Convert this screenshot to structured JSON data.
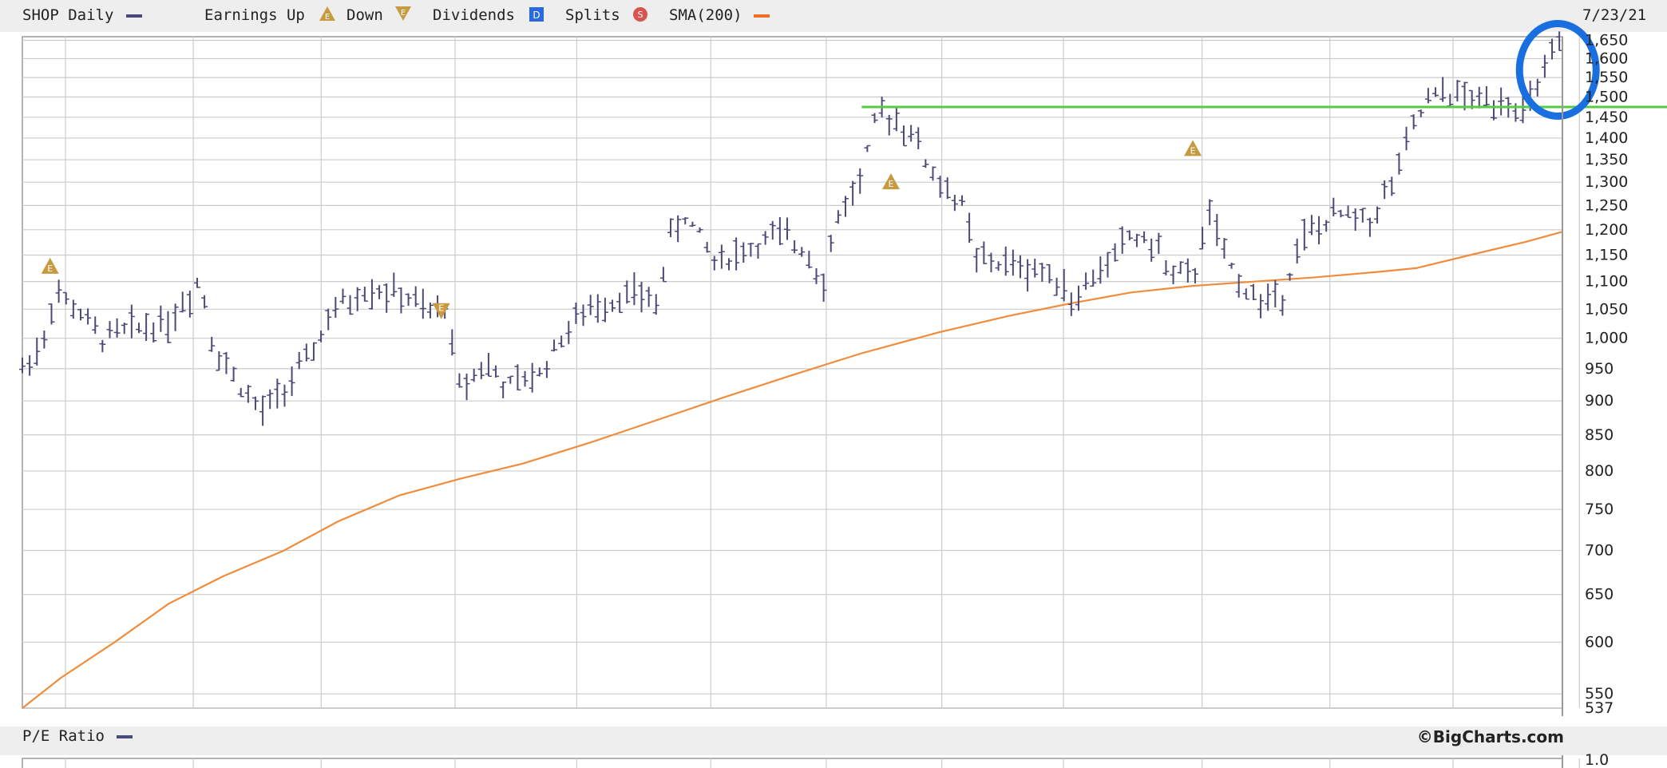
{
  "legend": {
    "symbol_label": "SHOP Daily",
    "earnings_label": "Earnings Up",
    "down_label": "Down",
    "dividends_label": "Dividends",
    "dividends_icon": "D",
    "splits_label": "Splits",
    "splits_icon": "S",
    "sma_label": "SMA(200)",
    "date": "7/23/21",
    "earnings_icon": "E"
  },
  "lower_panel": {
    "label": "P/E Ratio",
    "brand": "©BigCharts.com",
    "top_tick": "1.0"
  },
  "colors": {
    "price_bars": "#4a4a78",
    "sma": "#f08c3c",
    "resistance_line": "#55cc44",
    "highlight_circle": "#1a6fe0",
    "earnings_marker": "#c89a40",
    "grid": "#cccccc",
    "dividends": "#2a6ae0",
    "splits": "#d9534f"
  },
  "chart_data": {
    "type": "ohlc",
    "title": "SHOP Daily",
    "scale": "log",
    "ylim": [
      537,
      1660
    ],
    "y_ticks": [
      {
        "v": 1650,
        "label": "1,650"
      },
      {
        "v": 1600,
        "label": "1,600"
      },
      {
        "v": 1550,
        "label": "1,550"
      },
      {
        "v": 1500,
        "label": "1,500"
      },
      {
        "v": 1450,
        "label": "1,450"
      },
      {
        "v": 1400,
        "label": "1,400"
      },
      {
        "v": 1350,
        "label": "1,350"
      },
      {
        "v": 1300,
        "label": "1,300"
      },
      {
        "v": 1250,
        "label": "1,250"
      },
      {
        "v": 1200,
        "label": "1,200"
      },
      {
        "v": 1150,
        "label": "1,150"
      },
      {
        "v": 1100,
        "label": "1,100"
      },
      {
        "v": 1050,
        "label": "1,050"
      },
      {
        "v": 1000,
        "label": "1,000"
      },
      {
        "v": 950,
        "label": "950"
      },
      {
        "v": 900,
        "label": "900"
      },
      {
        "v": 850,
        "label": "850"
      },
      {
        "v": 800,
        "label": "800"
      },
      {
        "v": 750,
        "label": "750"
      },
      {
        "v": 700,
        "label": "700"
      },
      {
        "v": 650,
        "label": "650"
      },
      {
        "v": 600,
        "label": "600"
      },
      {
        "v": 550,
        "label": "550"
      },
      {
        "v": 537,
        "label": "537"
      }
    ],
    "x_range": [
      0,
      1000
    ],
    "x_gridlines": [
      28,
      111,
      194,
      281,
      360,
      447,
      522,
      597,
      676,
      766,
      849,
      929,
      1011
    ],
    "price_waypoints": [
      [
        0,
        950
      ],
      [
        15,
        1000
      ],
      [
        20,
        1080
      ],
      [
        35,
        1050
      ],
      [
        50,
        1000
      ],
      [
        75,
        1020
      ],
      [
        95,
        1030
      ],
      [
        110,
        1080
      ],
      [
        115,
        1110
      ],
      [
        125,
        980
      ],
      [
        140,
        930
      ],
      [
        155,
        880
      ],
      [
        170,
        920
      ],
      [
        185,
        960
      ],
      [
        200,
        1040
      ],
      [
        225,
        1090
      ],
      [
        250,
        1070
      ],
      [
        265,
        1040
      ],
      [
        275,
        1060
      ],
      [
        283,
        920
      ],
      [
        300,
        960
      ],
      [
        315,
        920
      ],
      [
        335,
        940
      ],
      [
        355,
        1020
      ],
      [
        375,
        1060
      ],
      [
        395,
        1080
      ],
      [
        412,
        1060
      ],
      [
        420,
        1180
      ],
      [
        430,
        1230
      ],
      [
        450,
        1140
      ],
      [
        470,
        1160
      ],
      [
        490,
        1190
      ],
      [
        510,
        1160
      ],
      [
        520,
        1100
      ],
      [
        530,
        1230
      ],
      [
        545,
        1310
      ],
      [
        555,
        1450
      ],
      [
        565,
        1460
      ],
      [
        580,
        1400
      ],
      [
        590,
        1320
      ],
      [
        610,
        1250
      ],
      [
        620,
        1140
      ],
      [
        645,
        1130
      ],
      [
        675,
        1110
      ],
      [
        680,
        1060
      ],
      [
        700,
        1120
      ],
      [
        720,
        1190
      ],
      [
        735,
        1170
      ],
      [
        745,
        1120
      ],
      [
        760,
        1100
      ],
      [
        770,
        1240
      ],
      [
        780,
        1150
      ],
      [
        790,
        1100
      ],
      [
        805,
        1060
      ],
      [
        818,
        1080
      ],
      [
        830,
        1180
      ],
      [
        855,
        1230
      ],
      [
        875,
        1220
      ],
      [
        890,
        1300
      ],
      [
        910,
        1480
      ],
      [
        925,
        1510
      ],
      [
        945,
        1490
      ],
      [
        965,
        1500
      ],
      [
        975,
        1450
      ],
      [
        985,
        1540
      ],
      [
        998,
        1630
      ]
    ],
    "bars": {
      "count": 212,
      "seed": 7,
      "volatility": 0.017
    },
    "sma_200": [
      [
        0,
        537
      ],
      [
        25,
        565
      ],
      [
        60,
        600
      ],
      [
        95,
        640
      ],
      [
        130,
        670
      ],
      [
        170,
        700
      ],
      [
        205,
        735
      ],
      [
        245,
        768
      ],
      [
        285,
        790
      ],
      [
        325,
        810
      ],
      [
        370,
        840
      ],
      [
        410,
        870
      ],
      [
        455,
        905
      ],
      [
        500,
        940
      ],
      [
        545,
        975
      ],
      [
        595,
        1010
      ],
      [
        640,
        1038
      ],
      [
        680,
        1060
      ],
      [
        720,
        1080
      ],
      [
        760,
        1092
      ],
      [
        800,
        1100
      ],
      [
        840,
        1108
      ],
      [
        880,
        1118
      ],
      [
        905,
        1125
      ],
      [
        940,
        1150
      ],
      [
        975,
        1175
      ],
      [
        1000,
        1196
      ]
    ],
    "resistance_line": {
      "value": 1475,
      "x_start": 545
    },
    "earnings_events": [
      {
        "x": 18,
        "type": "up",
        "value": 1128
      },
      {
        "x": 272,
        "type": "down",
        "value": 1048
      },
      {
        "x": 564,
        "type": "up",
        "value": 1300
      },
      {
        "x": 760,
        "type": "up",
        "value": 1375
      }
    ],
    "highlight": {
      "x": 997,
      "value": 1570,
      "note": "latest bars circled"
    },
    "date_label": "7/23/21"
  }
}
